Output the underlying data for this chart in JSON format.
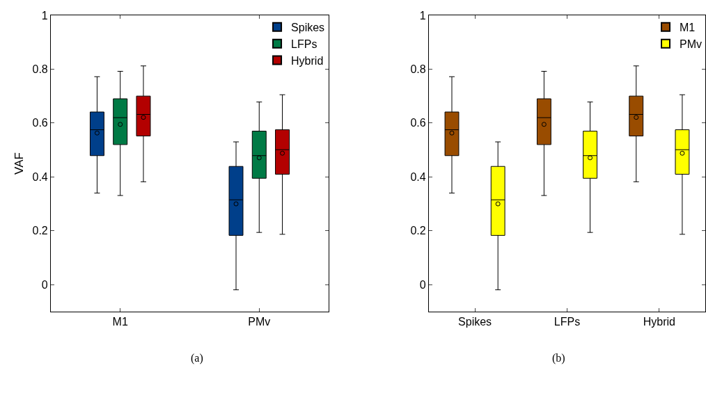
{
  "chart_data": [
    {
      "type": "box",
      "categories": [
        "M1",
        "PMv"
      ],
      "ylabel": "VAF",
      "ylim": [
        -0.1,
        1
      ],
      "yticks": [
        0,
        0.2,
        0.4,
        0.6,
        0.8,
        1
      ],
      "legend": "top right",
      "annotations": [
        "(a)"
      ],
      "series": [
        {
          "name": "Spikes",
          "color": "#003f8a",
          "boxes": [
            {
              "low": 0.34,
              "q1": 0.479,
              "median": 0.575,
              "q3": 0.641,
              "high": 0.772,
              "mean": 0.563
            },
            {
              "low": -0.019,
              "q1": 0.183,
              "median": 0.315,
              "q3": 0.439,
              "high": 0.53,
              "mean": 0.3
            }
          ]
        },
        {
          "name": "LFPs",
          "color": "#007a45",
          "boxes": [
            {
              "low": 0.331,
              "q1": 0.52,
              "median": 0.62,
              "q3": 0.69,
              "high": 0.792,
              "mean": 0.595
            },
            {
              "low": 0.194,
              "q1": 0.395,
              "median": 0.479,
              "q3": 0.57,
              "high": 0.678,
              "mean": 0.471
            }
          ]
        },
        {
          "name": "Hybrid",
          "color": "#b30000",
          "boxes": [
            {
              "low": 0.382,
              "q1": 0.552,
              "median": 0.632,
              "q3": 0.7,
              "high": 0.812,
              "mean": 0.621
            },
            {
              "low": 0.187,
              "q1": 0.41,
              "median": 0.501,
              "q3": 0.575,
              "high": 0.705,
              "mean": 0.488
            }
          ]
        }
      ]
    },
    {
      "type": "box",
      "categories": [
        "Spikes",
        "LFPs",
        "Hybrid"
      ],
      "ylim": [
        -0.1,
        1
      ],
      "yticks": [
        0,
        0.2,
        0.4,
        0.6,
        0.8,
        1
      ],
      "legend": "top right",
      "annotations": [
        "(b)"
      ],
      "series": [
        {
          "name": "M1",
          "color": "#994c00",
          "boxes": [
            {
              "low": 0.34,
              "q1": 0.479,
              "median": 0.575,
              "q3": 0.641,
              "high": 0.772,
              "mean": 0.563
            },
            {
              "low": 0.331,
              "q1": 0.52,
              "median": 0.62,
              "q3": 0.69,
              "high": 0.792,
              "mean": 0.595
            },
            {
              "low": 0.382,
              "q1": 0.552,
              "median": 0.632,
              "q3": 0.7,
              "high": 0.812,
              "mean": 0.621
            }
          ]
        },
        {
          "name": "PMv",
          "color": "#ffff00",
          "boxes": [
            {
              "low": -0.019,
              "q1": 0.183,
              "median": 0.315,
              "q3": 0.439,
              "high": 0.53,
              "mean": 0.3
            },
            {
              "low": 0.194,
              "q1": 0.395,
              "median": 0.479,
              "q3": 0.57,
              "high": 0.678,
              "mean": 0.471
            },
            {
              "low": 0.187,
              "q1": 0.41,
              "median": 0.501,
              "q3": 0.575,
              "high": 0.705,
              "mean": 0.488
            }
          ]
        }
      ]
    }
  ]
}
